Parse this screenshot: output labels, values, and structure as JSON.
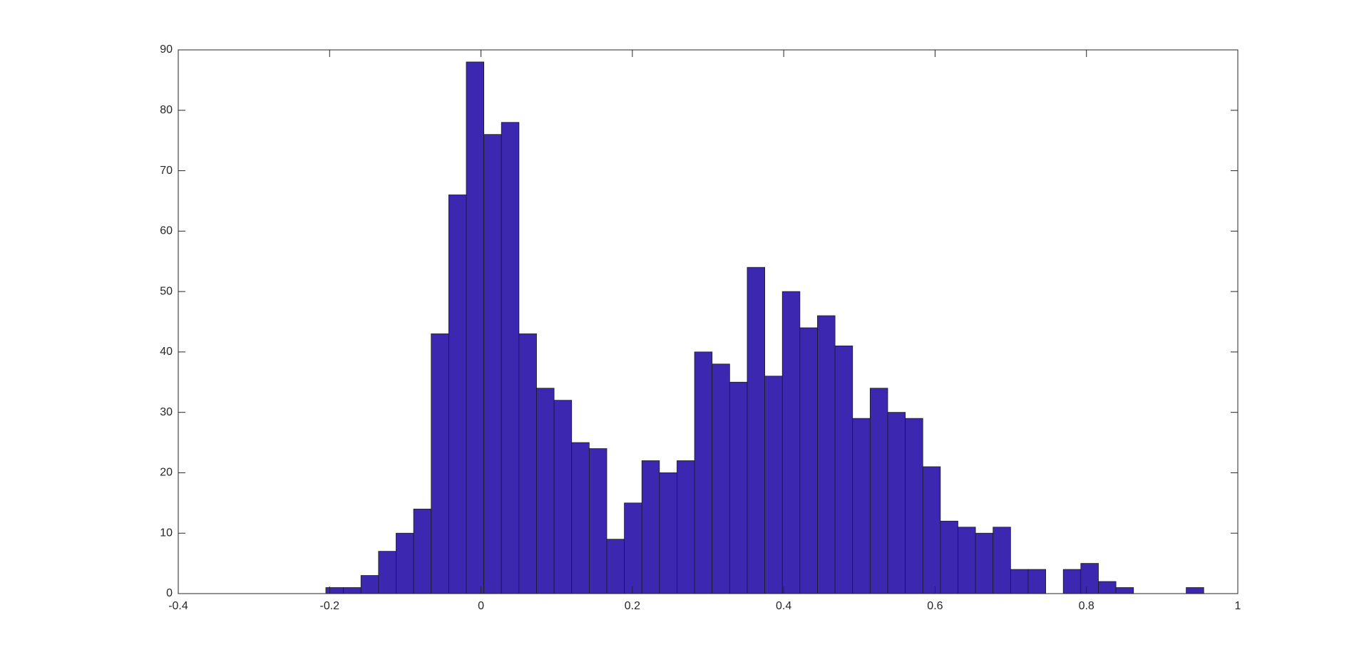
{
  "chart_data": {
    "type": "histogram",
    "color": "#3c28b0",
    "edge_color": "#1a1a1a",
    "bins": [
      -0.205,
      -0.1818,
      -0.1586,
      -0.1354,
      -0.1122,
      -0.089,
      -0.0658,
      -0.0426,
      -0.0194,
      0.0038,
      0.027,
      0.0502,
      0.0734,
      0.0966,
      0.1198,
      0.143,
      0.1662,
      0.1894,
      0.2126,
      0.2358,
      0.259,
      0.2822,
      0.3054,
      0.3286,
      0.3518,
      0.375,
      0.3982,
      0.4214,
      0.4446,
      0.4678,
      0.491,
      0.5142,
      0.5374,
      0.5606,
      0.5838,
      0.607,
      0.6302,
      0.6534,
      0.6766,
      0.6998,
      0.723,
      0.7462,
      0.7694,
      0.7926,
      0.8158,
      0.839,
      0.8622,
      0.8854,
      0.9086,
      0.9318,
      0.955
    ],
    "values": [
      1,
      1,
      3,
      7,
      10,
      14,
      43,
      66,
      88,
      76,
      78,
      43,
      34,
      32,
      25,
      24,
      9,
      15,
      22,
      20,
      22,
      40,
      38,
      35,
      54,
      36,
      50,
      44,
      46,
      41,
      29,
      34,
      30,
      29,
      21,
      12,
      11,
      10,
      11,
      4,
      4,
      0,
      4,
      5,
      2,
      1,
      0,
      0,
      0,
      1
    ],
    "xlim": [
      -0.4,
      1
    ],
    "xticks": [
      -0.4,
      -0.2,
      0,
      0.2,
      0.4,
      0.6,
      0.8,
      1
    ],
    "ylim": [
      0,
      90
    ],
    "yticks": [
      0,
      10,
      20,
      30,
      40,
      50,
      60,
      70,
      80,
      90
    ],
    "grid": false,
    "box": true
  }
}
